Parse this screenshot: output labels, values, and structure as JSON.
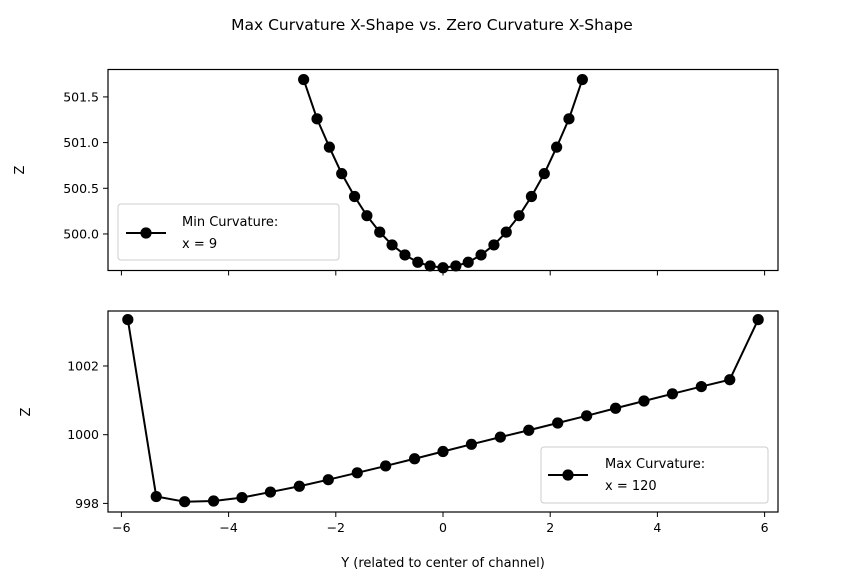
{
  "chart_data": {
    "title": "Max Curvature X-Shape vs. Zero Curvature X-Shape",
    "xlabel": "Y (related to center of channel)",
    "shared_x": true,
    "grid": false,
    "series_color": "#000000",
    "subplots": [
      {
        "type": "line",
        "marker": "circle",
        "ylabel": "Z",
        "xlim": [
          -6.25,
          6.25
        ],
        "ylim": [
          499.6,
          501.8
        ],
        "x_ticks": [
          -6,
          -4,
          -2,
          0,
          2,
          4,
          6
        ],
        "x_tick_labels_visible": false,
        "y_ticks": [
          500.0,
          500.5,
          501.0,
          501.5
        ],
        "y_tick_labels": [
          "500.0",
          "500.5",
          "501.0",
          "501.5"
        ],
        "legend": {
          "location": "lower left",
          "lines": [
            "Min Curvature:",
            "x = 9"
          ]
        },
        "series": [
          {
            "name": "Min Curvature: x = 9",
            "x": [
              -2.6,
              -2.35,
              -2.12,
              -1.89,
              -1.65,
              -1.42,
              -1.18,
              -0.95,
              -0.71,
              -0.47,
              -0.24,
              0.0,
              0.24,
              0.47,
              0.71,
              0.95,
              1.18,
              1.42,
              1.65,
              1.89,
              2.12,
              2.35,
              2.6
            ],
            "y": [
              501.69,
              501.26,
              500.95,
              500.66,
              500.41,
              500.2,
              500.02,
              499.88,
              499.77,
              499.69,
              499.65,
              499.63,
              499.65,
              499.69,
              499.77,
              499.88,
              500.02,
              500.2,
              500.41,
              500.66,
              500.95,
              501.26,
              501.69
            ]
          }
        ]
      },
      {
        "type": "line",
        "marker": "circle",
        "ylabel": "Z",
        "xlim": [
          -6.25,
          6.25
        ],
        "ylim": [
          997.75,
          1003.6
        ],
        "x_ticks": [
          -6,
          -4,
          -2,
          0,
          2,
          4,
          6
        ],
        "x_tick_labels": [
          "−6",
          "−4",
          "−2",
          "0",
          "2",
          "4",
          "6"
        ],
        "y_ticks": [
          998,
          1000,
          1002
        ],
        "y_tick_labels": [
          "998",
          "1000",
          "1002"
        ],
        "legend": {
          "location": "lower right",
          "lines": [
            "Max Curvature:",
            "x = 120"
          ]
        },
        "series": [
          {
            "name": "Max Curvature: x = 120",
            "x": [
              -5.88,
              -5.35,
              -4.82,
              -4.28,
              -3.75,
              -3.22,
              -2.68,
              -2.14,
              -1.6,
              -1.07,
              -0.53,
              0.0,
              0.53,
              1.07,
              1.6,
              2.14,
              2.68,
              3.22,
              3.75,
              4.28,
              4.82,
              5.35,
              5.88
            ],
            "y": [
              1003.35,
              998.2,
              998.05,
              998.07,
              998.17,
              998.33,
              998.5,
              998.69,
              998.89,
              999.09,
              999.3,
              999.51,
              999.72,
              999.93,
              1000.13,
              1000.34,
              1000.55,
              1000.77,
              1000.98,
              1001.19,
              1001.4,
              1001.6,
              1003.35
            ]
          }
        ]
      }
    ]
  }
}
